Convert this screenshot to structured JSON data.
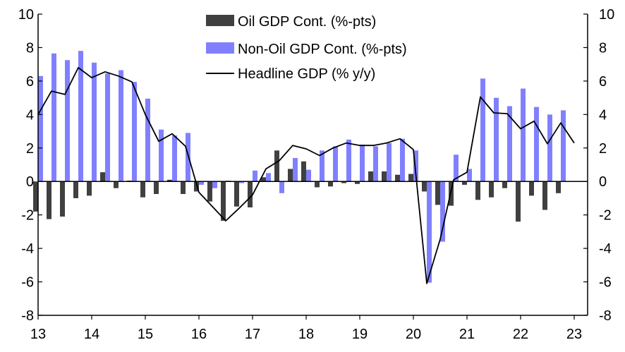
{
  "chart_data": {
    "type": "bar+line",
    "title": "",
    "xlabel": "",
    "ylabel": "",
    "ylim": [
      -8,
      10
    ],
    "yticks": [
      -8,
      -6,
      -4,
      -2,
      0,
      2,
      4,
      6,
      8,
      10
    ],
    "xlim": [
      13,
      23.25
    ],
    "xticks": [
      13,
      14,
      15,
      16,
      17,
      18,
      19,
      20,
      21,
      22,
      23
    ],
    "x_tick_labels": [
      "13",
      "14",
      "15",
      "16",
      "17",
      "18",
      "19",
      "20",
      "21",
      "22",
      "23"
    ],
    "grid": false,
    "legend_position": "top-center",
    "legend": [
      {
        "label": "Oil GDP Cont. (%-pts)",
        "kind": "bar",
        "color": "#404040"
      },
      {
        "label": "Non-Oil GDP Cont. (%-pts)",
        "kind": "bar",
        "color": "#8080ff"
      },
      {
        "label": "Headline GDP (% y/y)",
        "kind": "line",
        "color": "#000000"
      }
    ],
    "x": [
      13.0,
      13.25,
      13.5,
      13.75,
      14.0,
      14.25,
      14.5,
      14.75,
      15.0,
      15.25,
      15.5,
      15.75,
      16.0,
      16.25,
      16.5,
      16.75,
      17.0,
      17.25,
      17.5,
      17.75,
      18.0,
      18.25,
      18.5,
      18.75,
      19.0,
      19.25,
      19.5,
      19.75,
      20.0,
      20.25,
      20.5,
      20.75,
      21.0,
      21.25,
      21.5,
      21.75,
      22.0,
      22.25,
      22.5,
      22.75,
      23.0
    ],
    "series": [
      {
        "name": "Oil GDP Cont. (%-pts)",
        "type": "bar",
        "values": [
          -1.8,
          -2.25,
          -2.1,
          -1.0,
          -0.85,
          0.55,
          -0.4,
          0.05,
          -0.95,
          -0.75,
          0.1,
          -0.75,
          -0.6,
          -1.2,
          -2.35,
          -1.5,
          -1.55,
          0.25,
          1.85,
          0.75,
          1.2,
          -0.35,
          -0.3,
          -0.1,
          -0.15,
          0.6,
          0.6,
          0.4,
          0.45,
          -0.6,
          -1.4,
          -1.45,
          -0.2,
          -1.1,
          -0.95,
          -0.4,
          -2.4,
          -0.85,
          -1.7,
          -0.7,
          0.0
        ]
      },
      {
        "name": "Non-Oil GDP Cont. (%-pts)",
        "type": "bar",
        "values": [
          6.3,
          7.65,
          7.25,
          7.8,
          7.1,
          6.45,
          6.65,
          5.95,
          4.95,
          3.1,
          2.75,
          2.9,
          -0.2,
          -0.4,
          0.05,
          -0.1,
          0.65,
          0.5,
          -0.7,
          1.4,
          0.7,
          1.85,
          2.1,
          2.5,
          2.2,
          2.1,
          2.3,
          2.55,
          1.85,
          -6.05,
          -3.6,
          1.6,
          0.75,
          6.15,
          5.0,
          4.5,
          5.55,
          4.45,
          4.0,
          4.25,
          0.0
        ]
      },
      {
        "name": "Headline GDP (% y/y)",
        "type": "line",
        "values": [
          4.0,
          5.4,
          5.2,
          6.8,
          6.2,
          6.55,
          6.3,
          5.95,
          4.0,
          2.4,
          2.85,
          2.1,
          -0.65,
          -1.5,
          -2.35,
          -1.6,
          -0.8,
          0.75,
          1.25,
          2.15,
          1.95,
          1.55,
          2.0,
          2.3,
          2.15,
          2.15,
          2.3,
          2.55,
          1.9,
          -6.1,
          -3.45,
          0.1,
          0.55,
          5.05,
          4.1,
          4.05,
          3.15,
          3.6,
          2.25,
          3.5,
          2.3
        ]
      }
    ]
  },
  "colors": {
    "oil": "#404040",
    "non_oil": "#8080ff",
    "headline": "#000000"
  }
}
